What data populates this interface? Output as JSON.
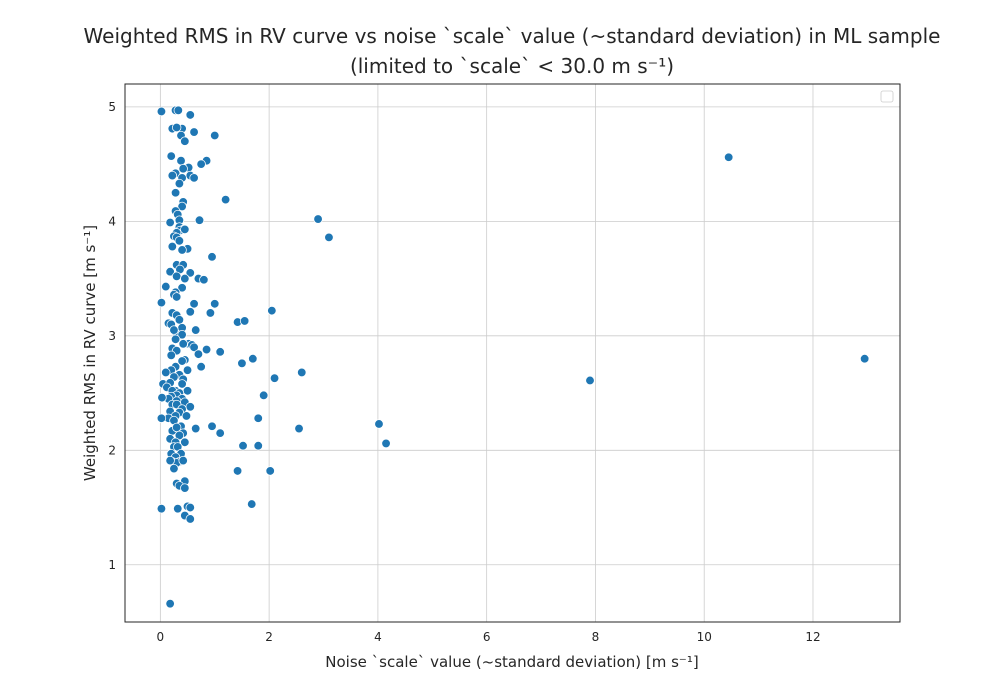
{
  "chart_data": {
    "type": "scatter",
    "title_line1": "Weighted RMS in RV curve vs noise `scale` value (~standard deviation) in ML sample",
    "title_line2": "(limited to `scale` < 30.0 m s⁻¹)",
    "xlabel": "Noise `scale` value (~standard deviation) [m s⁻¹]",
    "ylabel": "Weighted RMS in RV curve [m s⁻¹]",
    "xlim": [
      -0.65,
      13.6
    ],
    "ylim": [
      0.5,
      5.2
    ],
    "xticks": [
      0,
      2,
      4,
      6,
      8,
      10,
      12
    ],
    "yticks": [
      1,
      2,
      3,
      4,
      5
    ],
    "grid": true,
    "legend": {
      "position": "top-right",
      "entries": []
    },
    "marker_color": "#1f77b4",
    "x": [
      0.02,
      0.28,
      0.33,
      0.55,
      0.22,
      0.4,
      0.3,
      0.62,
      1.0,
      0.38,
      0.45,
      0.2,
      0.85,
      0.38,
      0.52,
      0.75,
      0.42,
      0.28,
      0.22,
      0.55,
      0.4,
      0.62,
      0.35,
      0.28,
      0.42,
      1.2,
      0.4,
      0.28,
      0.32,
      0.35,
      0.35,
      0.18,
      0.72,
      0.42,
      0.36,
      0.3,
      0.45,
      0.25,
      0.3,
      0.35,
      0.5,
      0.4,
      0.95,
      0.22,
      0.18,
      0.3,
      0.42,
      0.36,
      0.55,
      0.7,
      0.8,
      0.3,
      0.45,
      0.4,
      0.1,
      0.28,
      0.25,
      0.3,
      0.02,
      0.62,
      1.0,
      0.55,
      0.22,
      0.3,
      0.92,
      0.35,
      0.15,
      0.2,
      0.4,
      0.65,
      0.3,
      0.25,
      0.4,
      0.28,
      0.52,
      0.42,
      0.58,
      0.62,
      0.85,
      0.7,
      0.22,
      0.3,
      0.2,
      0.45,
      0.4,
      0.75,
      0.5,
      0.28,
      0.2,
      0.35,
      0.1,
      0.25,
      0.42,
      0.05,
      0.18,
      0.4,
      0.12,
      0.28,
      0.22,
      0.5,
      0.35,
      0.3,
      0.2,
      0.4,
      0.15,
      0.3,
      0.45,
      0.03,
      0.22,
      0.55,
      0.3,
      0.4,
      0.18,
      0.35,
      0.28,
      0.15,
      0.48,
      0.25,
      0.38,
      0.22,
      0.02,
      0.3,
      0.42,
      0.18,
      0.35,
      0.28,
      0.45,
      0.25,
      0.32,
      0.38,
      0.2,
      0.95,
      0.28,
      0.65,
      0.22,
      0.35,
      0.3,
      0.18,
      0.42,
      0.25,
      0.3,
      0.45,
      0.35,
      0.45,
      0.5,
      0.32,
      0.02,
      0.55,
      0.45,
      0.55,
      0.18,
      2.9,
      3.1,
      10.45,
      2.05,
      1.42,
      1.55,
      1.7,
      1.5,
      2.1,
      1.1,
      2.6,
      1.9,
      7.9,
      12.95,
      1.8,
      1.1,
      4.02,
      2.55,
      4.15,
      1.8,
      1.52,
      1.42,
      2.02,
      1.68
    ],
    "y": [
      4.96,
      4.97,
      4.97,
      4.93,
      4.81,
      4.81,
      4.82,
      4.78,
      4.75,
      4.75,
      4.7,
      4.57,
      4.53,
      4.53,
      4.47,
      4.5,
      4.46,
      4.42,
      4.4,
      4.4,
      4.38,
      4.38,
      4.33,
      4.25,
      4.17,
      4.19,
      4.13,
      4.09,
      4.06,
      4.01,
      3.95,
      3.99,
      4.01,
      3.93,
      3.92,
      3.9,
      3.93,
      3.87,
      3.86,
      3.83,
      3.76,
      3.75,
      3.69,
      3.78,
      3.56,
      3.62,
      3.62,
      3.58,
      3.55,
      3.5,
      3.49,
      3.52,
      3.5,
      3.42,
      3.43,
      3.38,
      3.36,
      3.34,
      3.29,
      3.28,
      3.28,
      3.21,
      3.2,
      3.18,
      3.2,
      3.14,
      3.11,
      3.1,
      3.07,
      3.05,
      3.01,
      3.05,
      3.01,
      2.97,
      2.93,
      2.93,
      2.92,
      2.9,
      2.88,
      2.84,
      2.89,
      2.87,
      2.83,
      2.79,
      2.78,
      2.73,
      2.7,
      2.73,
      2.7,
      2.66,
      2.68,
      2.64,
      2.62,
      2.58,
      2.59,
      2.58,
      2.55,
      2.52,
      2.52,
      2.52,
      2.5,
      2.48,
      2.47,
      2.45,
      2.45,
      2.43,
      2.42,
      2.46,
      2.4,
      2.38,
      2.4,
      2.36,
      2.34,
      2.33,
      2.3,
      2.28,
      2.3,
      2.26,
      2.21,
      2.17,
      2.28,
      2.2,
      2.15,
      2.1,
      2.13,
      2.07,
      2.07,
      2.03,
      2.03,
      1.97,
      1.97,
      2.21,
      1.94,
      2.19,
      1.9,
      1.9,
      1.89,
      1.91,
      1.91,
      1.84,
      1.71,
      1.73,
      1.69,
      1.67,
      1.51,
      1.49,
      1.49,
      1.5,
      1.43,
      1.4,
      0.66,
      4.02,
      3.86,
      4.56,
      3.22,
      3.12,
      3.13,
      2.8,
      2.76,
      2.63,
      2.86,
      2.68,
      2.48,
      2.61,
      2.8,
      2.28,
      2.15,
      2.23,
      2.19,
      2.06,
      2.04,
      2.04,
      1.82,
      1.82,
      1.53
    ]
  }
}
